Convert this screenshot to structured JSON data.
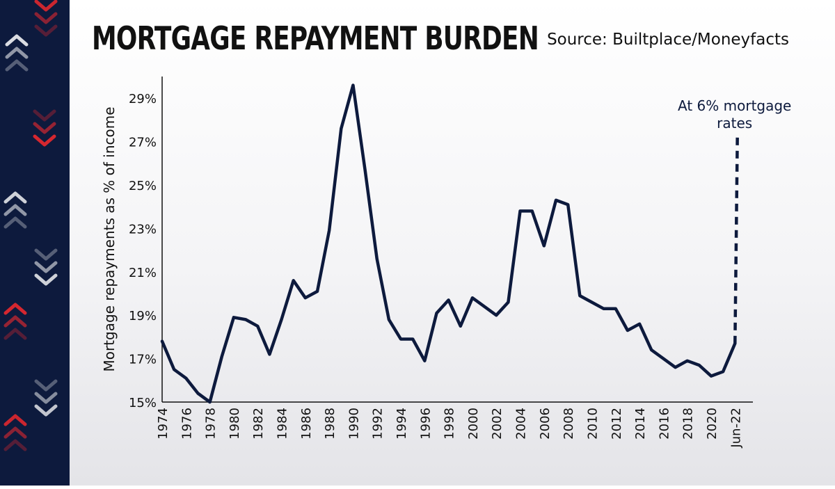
{
  "header": {
    "title": "MORTGAGE REPAYMENT BURDEN",
    "source": "Source: Builtplace/Moneyfacts"
  },
  "colors": {
    "line": "#0d1a3d",
    "stripe": "#0d1a3d",
    "chevron_red": "#e0282e",
    "chevron_white": "#ffffff"
  },
  "chart_data": {
    "type": "line",
    "title": "MORTGAGE REPAYMENT BURDEN",
    "xlabel": "",
    "ylabel": "Mortgage repayments as % of income",
    "ylim": [
      15,
      30
    ],
    "yticks": [
      15,
      17,
      19,
      21,
      23,
      25,
      27,
      29
    ],
    "ytick_labels": [
      "15%",
      "17%",
      "19%",
      "21%",
      "23%",
      "25%",
      "27%",
      "29%"
    ],
    "xtick_labels": [
      "1974",
      "1976",
      "1978",
      "1980",
      "1982",
      "1984",
      "1986",
      "1988",
      "1990",
      "1992",
      "1994",
      "1996",
      "1998",
      "2000",
      "2002",
      "2004",
      "2006",
      "2008",
      "2010",
      "2012",
      "2014",
      "2016",
      "2018",
      "2020",
      "Jun-22"
    ],
    "grid": false,
    "series": [
      {
        "name": "Mortgage repayments as % of income",
        "style": "solid",
        "x": [
          1974,
          1975,
          1976,
          1977,
          1978,
          1979,
          1980,
          1981,
          1982,
          1983,
          1984,
          1985,
          1986,
          1987,
          1988,
          1989,
          1990,
          1991,
          1992,
          1993,
          1994,
          1995,
          1996,
          1997,
          1998,
          1999,
          2000,
          2001,
          2002,
          2003,
          2004,
          2005,
          2006,
          2007,
          2008,
          2009,
          2010,
          2011,
          2012,
          2013,
          2014,
          2015,
          2016,
          2017,
          2018,
          2019,
          2020,
          2021,
          2022
        ],
        "values": [
          17.8,
          16.5,
          16.1,
          15.4,
          15.0,
          17.1,
          18.9,
          18.8,
          18.5,
          17.2,
          18.8,
          20.6,
          19.8,
          20.1,
          22.9,
          27.6,
          29.6,
          25.7,
          21.6,
          18.8,
          17.9,
          17.9,
          16.9,
          19.1,
          19.7,
          18.5,
          19.8,
          19.4,
          19.0,
          19.6,
          23.8,
          23.8,
          22.2,
          24.3,
          24.1,
          19.9,
          19.6,
          19.3,
          19.3,
          18.3,
          18.6,
          17.4,
          17.0,
          16.6,
          16.9,
          16.7,
          16.2,
          16.4,
          17.7
        ]
      },
      {
        "name": "At 6% mortgage rates",
        "style": "dashed",
        "x": [
          2022,
          2022.2
        ],
        "values": [
          17.7,
          27.2
        ]
      }
    ],
    "annotations": [
      {
        "text_lines": [
          "At 6% mortgage",
          "rates"
        ],
        "anchor_x": 2022.2,
        "anchor_y": 27.2
      }
    ]
  }
}
